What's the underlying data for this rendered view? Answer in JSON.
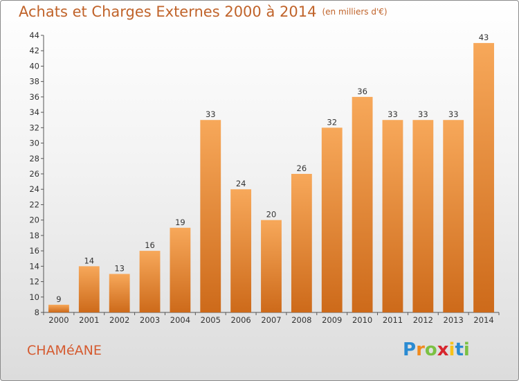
{
  "title": "Achats et Charges Externes 2000 à 2014",
  "unit": "(en milliers d'€)",
  "commune": "CHAMéANE",
  "logo": {
    "letters": [
      "P",
      "r",
      "o",
      "x",
      "i",
      "t",
      "i"
    ],
    "colors": [
      "#2a8bd2",
      "#f08a1e",
      "#7bc143",
      "#d7262e",
      "#f7c21a",
      "#2a8bd2",
      "#7bc143"
    ]
  },
  "colors": {
    "bar_top": "#f7a85a",
    "bar_bottom": "#cd6a1a",
    "title": "#c0632a",
    "commune": "#d55a2f"
  },
  "chart_data": {
    "type": "bar",
    "title": "Achats et Charges Externes 2000 à 2014",
    "subtitle": "(en milliers d'€)",
    "categories": [
      "2000",
      "2001",
      "2002",
      "2003",
      "2004",
      "2005",
      "2006",
      "2007",
      "2008",
      "2009",
      "2010",
      "2011",
      "2012",
      "2013",
      "2014"
    ],
    "values": [
      9,
      14,
      13,
      16,
      19,
      33,
      24,
      20,
      26,
      32,
      36,
      33,
      33,
      33,
      43
    ],
    "ylim": [
      8,
      44
    ],
    "yticks": [
      8,
      10,
      12,
      14,
      16,
      18,
      20,
      22,
      24,
      26,
      28,
      30,
      32,
      34,
      36,
      38,
      40,
      42,
      44
    ],
    "grid": false,
    "data_labels": true
  }
}
